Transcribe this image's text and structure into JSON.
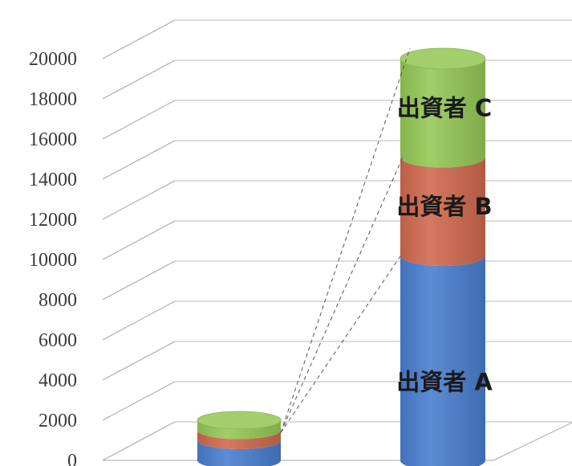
{
  "chart_data": {
    "type": "bar",
    "stacked": true,
    "style": "3d-cylinder",
    "title": "",
    "xlabel": "",
    "ylabel": "",
    "ylim": [
      0,
      20000
    ],
    "ticks": [
      "0",
      "2000",
      "4000",
      "6000",
      "8000",
      "10000",
      "12000",
      "14000",
      "16000",
      "18000",
      "20000"
    ],
    "grid": true,
    "legend": "none",
    "categories": [
      "",
      ""
    ],
    "series": [
      {
        "name": "出資者 A",
        "color": "#4a7fd0",
        "values": [
          1000,
          10200
        ]
      },
      {
        "name": "出資者 B",
        "color": "#d06a4e",
        "values": [
          500,
          4900
        ]
      },
      {
        "name": "出資者 C",
        "color": "#95c957",
        "values": [
          500,
          4900
        ]
      }
    ],
    "segment_labels": [
      "出資者 A",
      "出資者 B",
      "出資者 C"
    ],
    "annotations": "dashed lines connecting small stack to enlarged stack"
  }
}
